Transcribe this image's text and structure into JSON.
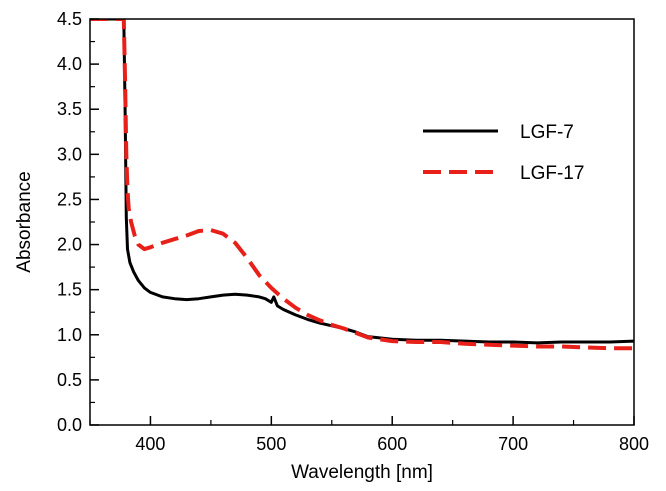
{
  "chart_data": {
    "type": "line",
    "title": "",
    "xlabel": "Wavelength [nm]",
    "ylabel": "Absorbance",
    "xlim": [
      350,
      800
    ],
    "ylim": [
      0.0,
      4.5
    ],
    "xticks": [
      400,
      500,
      600,
      700,
      800
    ],
    "xtick_labels": [
      "400",
      "500",
      "600",
      "700",
      "800"
    ],
    "yticks": [
      0.0,
      0.5,
      1.0,
      1.5,
      2.0,
      2.5,
      3.0,
      3.5,
      4.0,
      4.5
    ],
    "ytick_labels": [
      "0.0",
      "0.5",
      "1.0",
      "1.5",
      "2.0",
      "2.5",
      "3.0",
      "3.5",
      "4.0",
      "4.5"
    ],
    "grid": false,
    "legend_position": "top-right",
    "series": [
      {
        "name": "LGF-7",
        "color": "#000000",
        "style": "solid",
        "x": [
          350,
          378,
          379,
          380,
          381,
          383,
          386,
          390,
          395,
          400,
          410,
          420,
          430,
          440,
          450,
          460,
          470,
          480,
          490,
          495,
          500,
          502,
          505,
          510,
          520,
          530,
          540,
          550,
          560,
          570,
          580,
          600,
          620,
          640,
          660,
          680,
          700,
          720,
          740,
          760,
          780,
          800
        ],
        "y": [
          4.5,
          4.5,
          3.5,
          2.3,
          1.95,
          1.8,
          1.7,
          1.6,
          1.52,
          1.47,
          1.42,
          1.4,
          1.39,
          1.4,
          1.42,
          1.44,
          1.45,
          1.44,
          1.42,
          1.4,
          1.36,
          1.42,
          1.32,
          1.28,
          1.22,
          1.17,
          1.13,
          1.1,
          1.07,
          1.03,
          0.98,
          0.95,
          0.94,
          0.94,
          0.93,
          0.92,
          0.92,
          0.91,
          0.92,
          0.92,
          0.92,
          0.93
        ]
      },
      {
        "name": "LGF-17",
        "color": "#e8201a",
        "style": "dashed",
        "x": [
          350,
          378,
          379,
          380,
          381,
          382,
          384,
          387,
          390,
          395,
          400,
          410,
          420,
          430,
          440,
          450,
          460,
          470,
          480,
          490,
          500,
          510,
          520,
          530,
          540,
          550,
          560,
          570,
          580,
          600,
          620,
          640,
          660,
          680,
          700,
          720,
          740,
          760,
          780,
          800
        ],
        "y": [
          4.5,
          4.5,
          3.8,
          3.0,
          2.6,
          2.4,
          2.25,
          2.1,
          2.0,
          1.95,
          1.97,
          2.02,
          2.06,
          2.1,
          2.15,
          2.16,
          2.12,
          2.02,
          1.85,
          1.66,
          1.52,
          1.4,
          1.3,
          1.22,
          1.16,
          1.11,
          1.07,
          1.02,
          0.97,
          0.93,
          0.92,
          0.92,
          0.9,
          0.89,
          0.88,
          0.87,
          0.87,
          0.86,
          0.85,
          0.85
        ]
      }
    ]
  }
}
